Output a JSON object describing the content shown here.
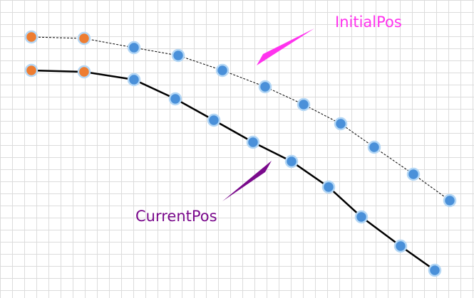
{
  "labels": {
    "initial": "InitialPos",
    "current": "CurrentPos"
  },
  "colors": {
    "grid": "#dcdcdc",
    "background": "#ffffff",
    "initial_label": "#ff33ee",
    "initial_arrow": "#ff33ee",
    "current_label": "#7a0a8c",
    "current_arrow": "#7a0a8c",
    "fixed_node_fill": "#ee7d31",
    "free_node_fill": "#4a90d9",
    "node_stroke": "#b4d7f5",
    "current_line": "#000000",
    "initial_line": "#000000"
  },
  "chains": [
    {
      "name": "initial",
      "line_style": "dashed",
      "nodes": [
        {
          "kind": "fixed"
        },
        {
          "kind": "fixed"
        },
        {
          "kind": "free"
        },
        {
          "kind": "free"
        },
        {
          "kind": "free"
        },
        {
          "kind": "free"
        },
        {
          "kind": "free"
        },
        {
          "kind": "free"
        },
        {
          "kind": "free"
        },
        {
          "kind": "free"
        },
        {
          "kind": "free"
        }
      ]
    },
    {
      "name": "current",
      "line_style": "solid",
      "nodes": [
        {
          "kind": "fixed"
        },
        {
          "kind": "fixed"
        },
        {
          "kind": "free"
        },
        {
          "kind": "free"
        },
        {
          "kind": "free"
        },
        {
          "kind": "free"
        },
        {
          "kind": "free"
        },
        {
          "kind": "free"
        },
        {
          "kind": "free"
        },
        {
          "kind": "free"
        },
        {
          "kind": "free"
        }
      ]
    }
  ]
}
